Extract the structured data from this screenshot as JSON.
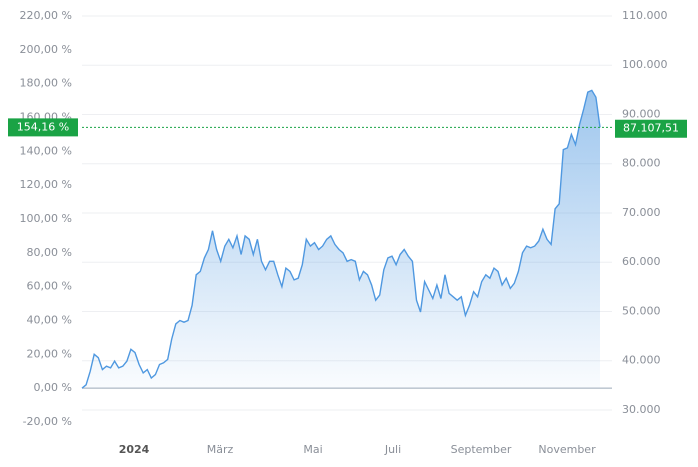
{
  "chart_data": {
    "type": "line",
    "x_labels": [
      "2024",
      "März",
      "Mai",
      "Juli",
      "September",
      "November"
    ],
    "series": [
      {
        "color": "#4f98e0",
        "values": [
          0,
          2,
          10,
          20,
          18,
          11,
          13,
          12,
          16,
          12,
          13,
          16,
          23,
          21,
          14,
          9,
          11,
          6,
          8,
          14,
          15,
          17,
          29,
          38,
          40,
          39,
          40,
          49,
          67,
          69,
          77,
          82,
          93,
          82,
          75,
          84,
          88,
          83,
          90,
          79,
          90,
          88,
          79,
          88,
          75,
          70,
          75,
          75,
          67,
          60,
          71,
          69,
          64,
          65,
          73,
          88,
          84,
          86,
          82,
          84,
          88,
          90,
          85,
          82,
          80,
          75,
          76,
          75,
          64,
          69,
          67,
          61,
          52,
          55,
          70,
          77,
          78,
          73,
          79,
          82,
          78,
          75,
          52,
          45,
          63,
          58,
          53,
          61,
          53,
          67,
          56,
          54,
          52,
          54,
          43,
          49,
          57,
          54,
          63,
          67,
          65,
          71,
          69,
          61,
          65,
          59,
          62,
          69,
          80,
          84,
          83,
          84,
          87,
          94,
          88,
          85,
          106,
          109,
          141,
          142,
          150,
          144,
          156,
          165,
          175,
          176,
          172,
          154.16
        ]
      }
    ],
    "ylim": [
      -20,
      220
    ],
    "yticks": [
      {
        "value": -20,
        "label": "-20,00 %"
      },
      {
        "value": 0,
        "label": "0,00 %"
      },
      {
        "value": 20,
        "label": "20,00 %"
      },
      {
        "value": 40,
        "label": "40,00 %"
      },
      {
        "value": 60,
        "label": "60,00 %"
      },
      {
        "value": 80,
        "label": "80,00 %"
      },
      {
        "value": 100,
        "label": "100,00 %"
      },
      {
        "value": 120,
        "label": "120,00 %"
      },
      {
        "value": 140,
        "label": "140,00 %"
      },
      {
        "value": 160,
        "label": "160,00 %"
      },
      {
        "value": 180,
        "label": "180,00 %"
      },
      {
        "value": 200,
        "label": "200,00 %"
      },
      {
        "value": 220,
        "label": "220,00 %"
      }
    ],
    "y2lim": [
      27560,
      110000
    ],
    "y2ticks": [
      {
        "value": 30000,
        "label": "30.000"
      },
      {
        "value": 40000,
        "label": "40.000"
      },
      {
        "value": 50000,
        "label": "50.000"
      },
      {
        "value": 60000,
        "label": "60.000"
      },
      {
        "value": 70000,
        "label": "70.000"
      },
      {
        "value": 80000,
        "label": "80.000"
      },
      {
        "value": 90000,
        "label": "90.000"
      },
      {
        "value": 100000,
        "label": "100.000"
      },
      {
        "value": 110000,
        "label": "110.000"
      }
    ],
    "current_percent": {
      "value": 154.16,
      "label": "154,16 %"
    },
    "current_price": {
      "value": 87107.51,
      "label": "87.107,51"
    },
    "marker_color": "#1aa345",
    "grid": true
  }
}
